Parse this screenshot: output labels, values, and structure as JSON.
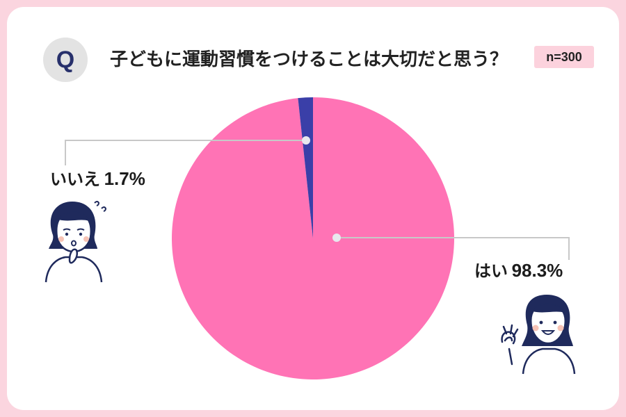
{
  "header": {
    "q_label": "Q",
    "question": "子どもに運動習慣をつけることは大切だと思う？",
    "sample_size": "n=300"
  },
  "chart_data": {
    "type": "pie",
    "title": "子どもに運動習慣をつけることは大切だと思う？",
    "slices": [
      {
        "label": "はい",
        "value": 98.3,
        "value_label": "98.3%",
        "color": "#ff73b5"
      },
      {
        "label": "いいえ",
        "value": 1.7,
        "value_label": "1.7%",
        "color": "#3a3fa8"
      }
    ]
  },
  "icons": {
    "no_person": "worried-person-icon",
    "yes_person": "ok-sign-person-icon"
  }
}
